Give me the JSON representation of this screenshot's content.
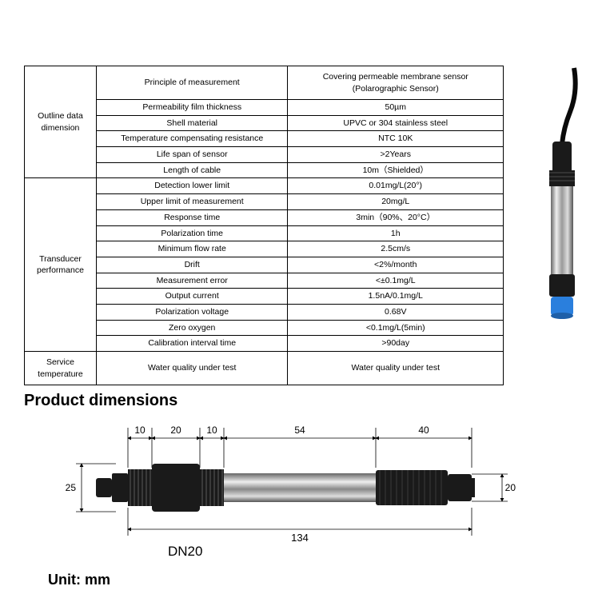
{
  "table": {
    "groups": [
      {
        "label": "Outline data dimension",
        "rows": [
          {
            "param": "Principle of measurement",
            "value": "Covering permeable membrane sensor\n(Polarographic Sensor)",
            "tall": true
          },
          {
            "param": "Permeability film thickness",
            "value": "50µm"
          },
          {
            "param": "Shell material",
            "value": "UPVC or 304 stainless steel"
          },
          {
            "param": "Temperature compensating resistance",
            "value": "NTC 10K"
          },
          {
            "param": "Life span of sensor",
            "value": ">2Years"
          },
          {
            "param": "Length of cable",
            "value": "10m（Shielded）"
          }
        ]
      },
      {
        "label": "Transducer performance",
        "rows": [
          {
            "param": "Detection lower limit",
            "value": "0.01mg/L(20°)"
          },
          {
            "param": "Upper limit of measurement",
            "value": "20mg/L"
          },
          {
            "param": "Response time",
            "value": "3min（90%、20°C）"
          },
          {
            "param": "Polarization time",
            "value": "1h"
          },
          {
            "param": "Minimum flow rate",
            "value": "2.5cm/s"
          },
          {
            "param": "Drift",
            "value": "<2%/month"
          },
          {
            "param": "Measurement error",
            "value": "<±0.1mg/L"
          },
          {
            "param": "Output current",
            "value": "1.5nA/0.1mg/L"
          },
          {
            "param": "Polarization voltage",
            "value": "0.68V"
          },
          {
            "param": "Zero oxygen",
            "value": "<0.1mg/L(5min)"
          },
          {
            "param": "Calibration interval time",
            "value": ">90day"
          }
        ]
      },
      {
        "label": "Service temperature",
        "rows": [
          {
            "param": "Water quality under test",
            "value": "Water quality under test",
            "tall": true
          }
        ]
      }
    ]
  },
  "headings": {
    "dimensions": "Product dimensions",
    "unit": "Unit: mm",
    "dn": "DN20"
  },
  "dim": {
    "seg1": "10",
    "seg2": "20",
    "seg3": "10",
    "seg4": "54",
    "seg5": "40",
    "height_left": "25",
    "height_right": "20",
    "total": "134"
  },
  "colors": {
    "text": "#000000",
    "border": "#000000",
    "bg": "#ffffff",
    "sensor_black": "#1a1a1a",
    "sensor_steel1": "#e8e8e8",
    "sensor_steel2": "#888888",
    "sensor_blue": "#2a7fdd",
    "cable": "#0a0a0a"
  }
}
